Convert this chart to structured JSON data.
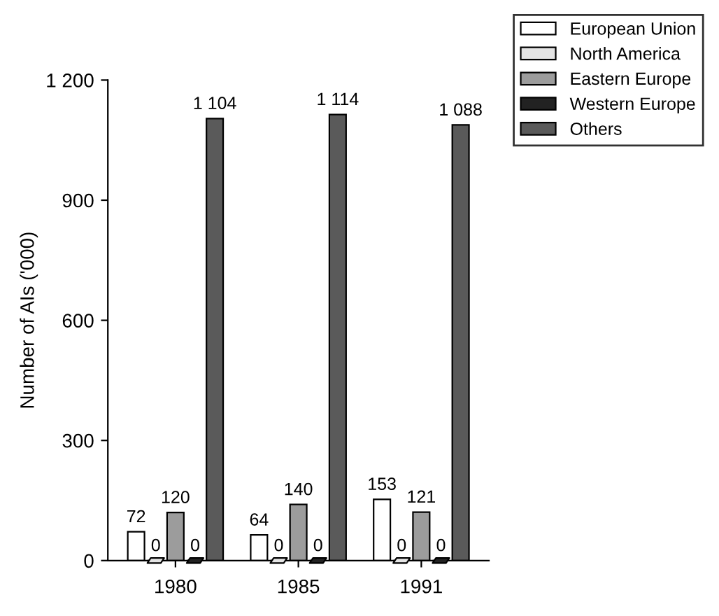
{
  "chart_data": {
    "type": "bar",
    "ylabel": "Number of AIs ('000)",
    "categories": [
      "1980",
      "1985",
      "1991"
    ],
    "series": [
      {
        "name": "European Union",
        "color": "#ffffff",
        "values": [
          72,
          64,
          153
        ],
        "value_labels": [
          "72",
          "64",
          "153"
        ]
      },
      {
        "name": "North America",
        "color": "#e4e4e4",
        "values": [
          0,
          0,
          0
        ],
        "value_labels": [
          "0",
          "0",
          "0"
        ]
      },
      {
        "name": "Eastern Europe",
        "color": "#9c9c9c",
        "values": [
          120,
          140,
          121
        ],
        "value_labels": [
          "120",
          "140",
          "121"
        ]
      },
      {
        "name": "Western Europe",
        "color": "#222222",
        "values": [
          0,
          0,
          0
        ],
        "value_labels": [
          "0",
          "0",
          "0"
        ]
      },
      {
        "name": "Others",
        "color": "#5a5a5a",
        "values": [
          1104,
          1114,
          1088
        ],
        "value_labels": [
          "1 104",
          "1 114",
          "1 088"
        ]
      }
    ],
    "ylim": [
      0,
      1200
    ],
    "yticks": [
      0,
      300,
      600,
      900,
      {
        "value": 1200,
        "label": "1 200"
      }
    ],
    "legend": "top right"
  }
}
